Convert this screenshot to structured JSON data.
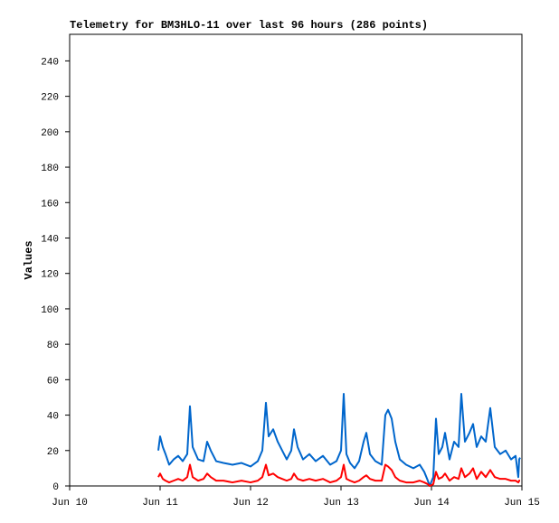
{
  "chart_data": {
    "type": "line",
    "title": "Telemetry for BM3HLO-11 over last 96 hours (286 points)",
    "y_label": "Values",
    "x": [
      10.98,
      11.0,
      11.03,
      11.06,
      11.1,
      11.15,
      11.2,
      11.25,
      11.3,
      11.33,
      11.36,
      11.42,
      11.48,
      11.52,
      11.56,
      11.62,
      11.7,
      11.8,
      11.9,
      12.0,
      12.08,
      12.13,
      12.17,
      12.2,
      12.25,
      12.3,
      12.35,
      12.4,
      12.45,
      12.48,
      12.52,
      12.58,
      12.65,
      12.72,
      12.8,
      12.88,
      12.95,
      13.0,
      13.03,
      13.06,
      13.1,
      13.15,
      13.2,
      13.25,
      13.28,
      13.32,
      13.38,
      13.45,
      13.49,
      13.52,
      13.56,
      13.6,
      13.65,
      13.72,
      13.8,
      13.87,
      13.92,
      13.96,
      13.98,
      14.02,
      14.05,
      14.08,
      14.12,
      14.15,
      14.2,
      14.25,
      14.3,
      14.33,
      14.37,
      14.42,
      14.46,
      14.5,
      14.55,
      14.6,
      14.65,
      14.7,
      14.76,
      14.82,
      14.88,
      14.93,
      14.96,
      14.97,
      14.98
    ],
    "series": [
      {
        "color": "#0066cc",
        "values": [
          20,
          28,
          22,
          18,
          12,
          15,
          17,
          14,
          18,
          45,
          22,
          15,
          14,
          25,
          20,
          14,
          13,
          12,
          13,
          11,
          14,
          20,
          47,
          28,
          32,
          25,
          20,
          15,
          20,
          32,
          22,
          15,
          18,
          14,
          17,
          12,
          14,
          20,
          52,
          18,
          13,
          10,
          14,
          25,
          30,
          18,
          14,
          12,
          40,
          43,
          38,
          25,
          15,
          12,
          10,
          12,
          8,
          3,
          0,
          5,
          38,
          18,
          22,
          30,
          15,
          25,
          22,
          52,
          25,
          30,
          35,
          22,
          28,
          25,
          44,
          22,
          18,
          20,
          15,
          17,
          5,
          15,
          16
        ]
      },
      {
        "color": "#ff0000",
        "values": [
          5,
          7,
          4,
          3,
          2,
          3,
          4,
          3,
          5,
          12,
          5,
          3,
          4,
          7,
          5,
          3,
          3,
          2,
          3,
          2,
          3,
          5,
          12,
          6,
          7,
          5,
          4,
          3,
          4,
          7,
          4,
          3,
          4,
          3,
          4,
          2,
          3,
          5,
          12,
          4,
          3,
          2,
          3,
          5,
          6,
          4,
          3,
          3,
          12,
          11,
          9,
          5,
          3,
          2,
          2,
          3,
          2,
          1,
          0,
          1,
          8,
          4,
          5,
          7,
          3,
          5,
          4,
          10,
          5,
          7,
          10,
          4,
          8,
          5,
          9,
          5,
          4,
          4,
          3,
          3,
          2,
          3,
          3
        ]
      }
    ],
    "xlim": [
      10,
      15
    ],
    "xticks": [
      {
        "value": 10,
        "label": "Jun 10"
      },
      {
        "value": 11,
        "label": "Jun 11"
      },
      {
        "value": 12,
        "label": "Jun 12"
      },
      {
        "value": 13,
        "label": "Jun 13"
      },
      {
        "value": 14,
        "label": "Jun 14"
      },
      {
        "value": 15,
        "label": "Jun 15"
      }
    ],
    "ylim": [
      0,
      255
    ],
    "yticks": [
      0,
      20,
      40,
      60,
      80,
      100,
      120,
      140,
      160,
      180,
      200,
      220,
      240
    ],
    "grid": false
  }
}
